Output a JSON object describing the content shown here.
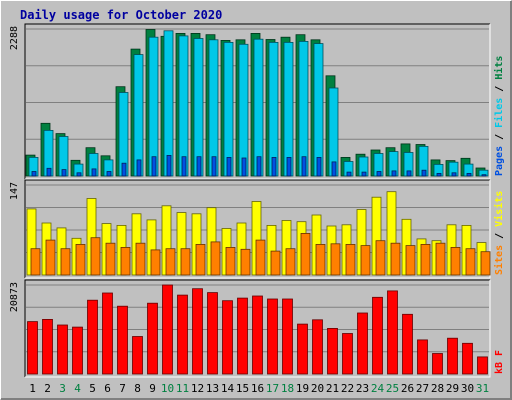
{
  "chart_data": {
    "title": "Daily usage for October 2020",
    "type": "bar",
    "days": [
      "1",
      "2",
      "3",
      "4",
      "5",
      "6",
      "7",
      "8",
      "9",
      "10",
      "11",
      "12",
      "13",
      "14",
      "15",
      "16",
      "17",
      "18",
      "19",
      "20",
      "21",
      "22",
      "23",
      "24",
      "25",
      "26",
      "27",
      "28",
      "29",
      "30",
      "31"
    ],
    "weekend_days": [
      "3",
      "4",
      "10",
      "11",
      "17",
      "18",
      "24",
      "25",
      "31"
    ],
    "panels": [
      {
        "name": "hits-files-pages",
        "ymax_label": "2288",
        "ymax": 2288,
        "legend": [
          "Pages",
          "Files",
          "Hits"
        ],
        "series": [
          {
            "name": "Hits",
            "color": "#008040",
            "values": [
              325,
              820,
              660,
              245,
              440,
              315,
              1390,
              1975,
              2280,
              2175,
              2220,
              2220,
              2200,
              2110,
              2120,
              2220,
              2125,
              2160,
              2200,
              2120,
              1560,
              290,
              340,
              405,
              440,
              500,
              490,
              250,
              240,
              275,
              125
            ]
          },
          {
            "name": "Files",
            "color": "#00c8e8",
            "values": [
              290,
              710,
              615,
              185,
              350,
              250,
              1300,
              1890,
              2160,
              2260,
              2180,
              2140,
              2120,
              2080,
              2050,
              2130,
              2080,
              2080,
              2095,
              2060,
              1370,
              225,
              295,
              350,
              380,
              365,
              460,
              180,
              215,
              185,
              90
            ]
          },
          {
            "name": "Pages",
            "color": "#0050e0",
            "values": [
              70,
              120,
              100,
              50,
              110,
              70,
              200,
              250,
              300,
              320,
              300,
              300,
              300,
              290,
              280,
              300,
              290,
              290,
              300,
              290,
              220,
              60,
              60,
              70,
              80,
              80,
              90,
              40,
              50,
              40,
              20
            ]
          }
        ]
      },
      {
        "name": "visits-sites",
        "ymax_label": "147",
        "ymax": 147,
        "legend": [
          "Sites",
          "Visits"
        ],
        "series": [
          {
            "name": "Visits",
            "color": "#ffff00",
            "values": [
              108,
              85,
              77,
              60,
              125,
              84,
              81,
              100,
              90,
              113,
              102,
              100,
              110,
              76,
              85,
              120,
              81,
              89,
              87,
              98,
              80,
              82,
              107,
              127,
              136,
              91,
              59,
              56,
              82,
              81,
              53
            ]
          },
          {
            "name": "Sites",
            "color": "#ff8000",
            "values": [
              43,
              57,
              43,
              50,
              61,
              52,
              45,
              52,
              41,
              43,
              43,
              50,
              54,
              45,
              42,
              57,
              39,
              43,
              68,
              50,
              51,
              50,
              48,
              56,
              52,
              48,
              50,
              52,
              45,
              43,
              38
            ]
          }
        ]
      },
      {
        "name": "kbytes",
        "ymax_label": "20873",
        "ymax": 20873,
        "legend": [
          "kB F"
        ],
        "series": [
          {
            "name": "kB F",
            "color": "#ff0000",
            "values": [
              12300,
              12800,
              11500,
              11000,
              17300,
              19000,
              15900,
              8800,
              16600,
              20873,
              18500,
              20000,
              19100,
              17200,
              17800,
              18300,
              17600,
              17600,
              11700,
              12700,
              10700,
              9500,
              14300,
              18000,
              19500,
              14000,
              8000,
              4800,
              8400,
              7200,
              4000
            ]
          }
        ]
      }
    ]
  }
}
